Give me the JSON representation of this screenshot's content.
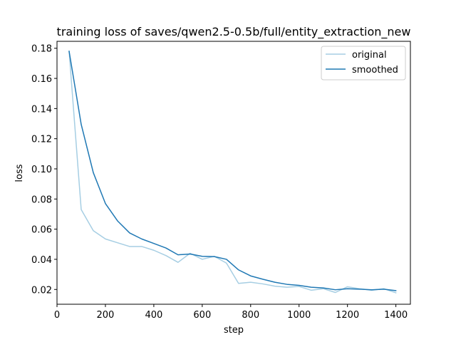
{
  "chart_data": {
    "type": "line",
    "title": "training loss of saves/qwen2.5-0.5b/full/entity_extraction_new",
    "xlabel": "step",
    "ylabel": "loss",
    "xlim": [
      0,
      1460
    ],
    "ylim": [
      0.0102,
      0.1846
    ],
    "xticks": [
      0,
      200,
      400,
      600,
      800,
      1000,
      1200,
      1400
    ],
    "yticks": [
      0.02,
      0.04,
      0.06,
      0.08,
      0.1,
      0.12,
      0.14,
      0.16,
      0.18
    ],
    "ytick_labels": [
      "0.02",
      "0.04",
      "0.06",
      "0.08",
      "0.10",
      "0.12",
      "0.14",
      "0.16",
      "0.18"
    ],
    "grid": false,
    "legend_position": "top-right",
    "series": [
      {
        "name": "original",
        "color": "#a6cee3",
        "x": [
          50,
          100,
          150,
          200,
          250,
          300,
          350,
          400,
          450,
          500,
          550,
          600,
          650,
          700,
          750,
          800,
          850,
          900,
          950,
          1000,
          1050,
          1100,
          1150,
          1200,
          1250,
          1300,
          1350,
          1400
        ],
        "y": [
          0.178,
          0.073,
          0.059,
          0.0535,
          0.051,
          0.0485,
          0.0485,
          0.046,
          0.0425,
          0.038,
          0.044,
          0.04,
          0.042,
          0.0375,
          0.024,
          0.0248,
          0.0237,
          0.0222,
          0.0215,
          0.022,
          0.0195,
          0.0205,
          0.018,
          0.0218,
          0.0205,
          0.0195,
          0.0205,
          0.0178
        ]
      },
      {
        "name": "smoothed",
        "color": "#1f78b4",
        "x": [
          50,
          100,
          150,
          200,
          250,
          300,
          350,
          400,
          450,
          500,
          550,
          600,
          650,
          700,
          750,
          800,
          850,
          900,
          950,
          1000,
          1050,
          1100,
          1150,
          1200,
          1250,
          1300,
          1350,
          1400
        ],
        "y": [
          0.178,
          0.1295,
          0.0975,
          0.077,
          0.0655,
          0.0575,
          0.0535,
          0.0505,
          0.0475,
          0.043,
          0.0435,
          0.042,
          0.0418,
          0.04,
          0.033,
          0.029,
          0.0268,
          0.0248,
          0.0234,
          0.0227,
          0.0215,
          0.021,
          0.0198,
          0.0205,
          0.0202,
          0.0198,
          0.0202,
          0.0192
        ]
      }
    ]
  }
}
